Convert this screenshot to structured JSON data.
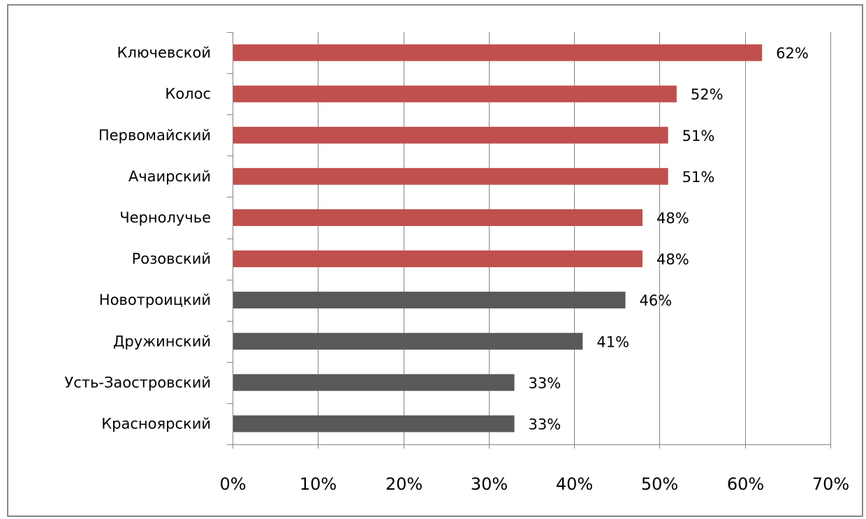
{
  "chart_data": {
    "type": "bar",
    "orientation": "horizontal",
    "title": "",
    "xlabel": "",
    "ylabel": "",
    "xlim": [
      0,
      70
    ],
    "x_ticks": [
      "0%",
      "10%",
      "20%",
      "30%",
      "40%",
      "50%",
      "60%",
      "70%"
    ],
    "grid": "vertical",
    "legend": "none",
    "categories": [
      "Ключевской",
      "Колос",
      "Первомайский",
      "Ачаирский",
      "Чернолучье",
      "Розовский",
      "Новотроицкий",
      "Дружинский",
      "Усть-Заостровский",
      "Красноярский"
    ],
    "values": [
      62,
      52,
      51,
      51,
      48,
      48,
      46,
      41,
      33,
      33
    ],
    "data_labels": [
      "62%",
      "52%",
      "51%",
      "51%",
      "48%",
      "48%",
      "46%",
      "41%",
      "33%",
      "33%"
    ],
    "bar_colors": [
      "#C0504D",
      "#C0504D",
      "#C0504D",
      "#C0504D",
      "#C0504D",
      "#C0504D",
      "#595959",
      "#595959",
      "#595959",
      "#595959"
    ]
  }
}
